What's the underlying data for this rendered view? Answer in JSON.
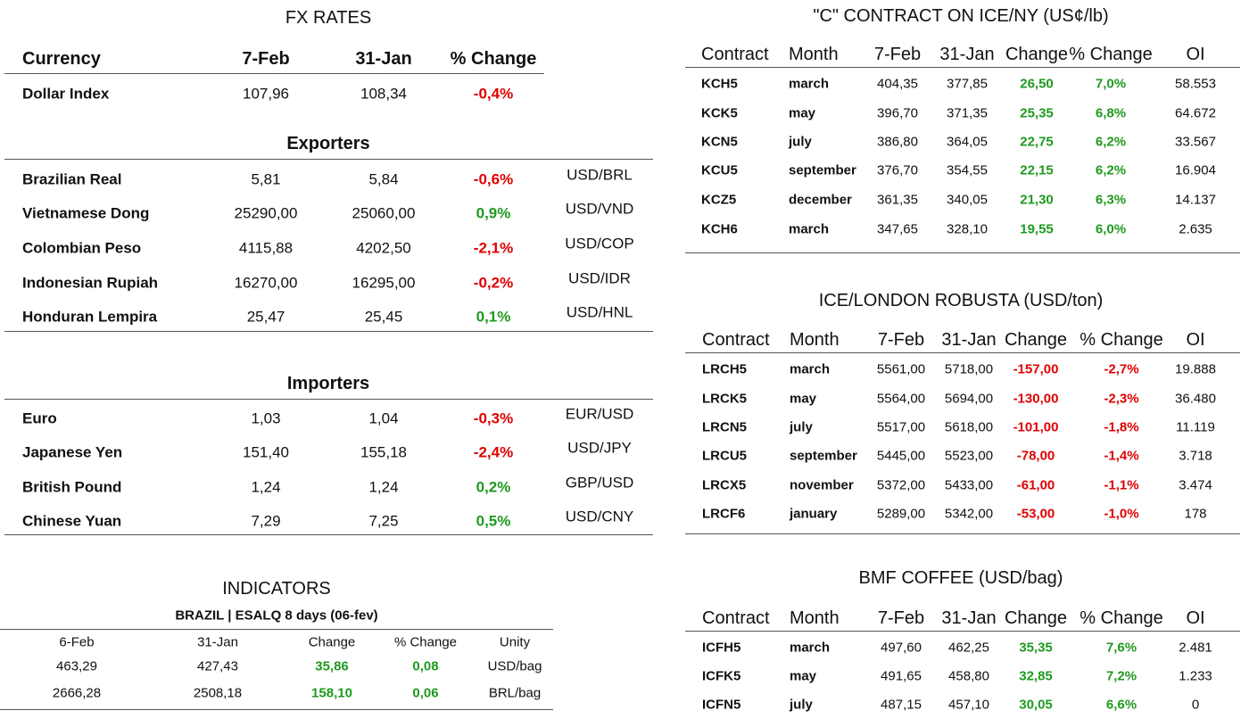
{
  "fx": {
    "title": "FX RATES",
    "headers": [
      "Currency",
      "7-Feb",
      "31-Jan",
      "% Change"
    ],
    "dollar": [
      "Dollar Index",
      "107,96",
      "108,34",
      "-0,4%"
    ],
    "exporters": {
      "title": "Exporters",
      "rows": [
        [
          "Brazilian Real",
          "5,81",
          "5,84",
          "-0,6%",
          "USD/BRL"
        ],
        [
          "Vietnamese Dong",
          "25290,00",
          "25060,00",
          "0,9%",
          "USD/VND"
        ],
        [
          "Colombian Peso",
          "4115,88",
          "4202,50",
          "-2,1%",
          "USD/COP"
        ],
        [
          "Indonesian Rupiah",
          "16270,00",
          "16295,00",
          "-0,2%",
          "USD/IDR"
        ],
        [
          "Honduran Lempira",
          "25,47",
          "25,45",
          "0,1%",
          "USD/HNL"
        ]
      ]
    },
    "importers": {
      "title": "Importers",
      "rows": [
        [
          "Euro",
          "1,03",
          "1,04",
          "-0,3%",
          "EUR/USD"
        ],
        [
          "Japanese Yen",
          "151,40",
          "155,18",
          "-2,4%",
          "USD/JPY"
        ],
        [
          "British Pound",
          "1,24",
          "1,24",
          "0,2%",
          "GBP/USD"
        ],
        [
          "Chinese Yuan",
          "7,29",
          "7,25",
          "0,5%",
          "USD/CNY"
        ]
      ]
    }
  },
  "indicators": {
    "title": "INDICATORS",
    "subtitle": "BRAZIL | ESALQ 8 days (06-fev)",
    "headers": [
      "6-Feb",
      "31-Jan",
      "Change",
      "% Change",
      "Unity"
    ],
    "rows": [
      [
        "463,29",
        "427,43",
        "35,86",
        "0,08",
        "USD/bag"
      ],
      [
        "2666,28",
        "2508,18",
        "158,10",
        "0,06",
        "BRL/bag"
      ]
    ]
  },
  "kc": {
    "title": "\"C\" CONTRACT ON ICE/NY (US¢/lb)",
    "headers": [
      "Contract",
      "Month",
      "7-Feb",
      "31-Jan",
      "Change",
      "% Change",
      "OI"
    ],
    "rows": [
      [
        "KCH5",
        "march",
        "404,35",
        "377,85",
        "26,50",
        "7,0%",
        "58.553"
      ],
      [
        "KCK5",
        "may",
        "396,70",
        "371,35",
        "25,35",
        "6,8%",
        "64.672"
      ],
      [
        "KCN5",
        "july",
        "386,80",
        "364,05",
        "22,75",
        "6,2%",
        "33.567"
      ],
      [
        "KCU5",
        "september",
        "376,70",
        "354,55",
        "22,15",
        "6,2%",
        "16.904"
      ],
      [
        "KCZ5",
        "december",
        "361,35",
        "340,05",
        "21,30",
        "6,3%",
        "14.137"
      ],
      [
        "KCH6",
        "march",
        "347,65",
        "328,10",
        "19,55",
        "6,0%",
        "2.635"
      ]
    ]
  },
  "robusta": {
    "title": "ICE/LONDON ROBUSTA (USD/ton)",
    "headers": [
      "Contract",
      "Month",
      "7-Feb",
      "31-Jan",
      "Change",
      "% Change",
      "OI"
    ],
    "rows": [
      [
        "LRCH5",
        "march",
        "5561,00",
        "5718,00",
        "-157,00",
        "-2,7%",
        "19.888"
      ],
      [
        "LRCK5",
        "may",
        "5564,00",
        "5694,00",
        "-130,00",
        "-2,3%",
        "36.480"
      ],
      [
        "LRCN5",
        "july",
        "5517,00",
        "5618,00",
        "-101,00",
        "-1,8%",
        "11.119"
      ],
      [
        "LRCU5",
        "september",
        "5445,00",
        "5523,00",
        "-78,00",
        "-1,4%",
        "3.718"
      ],
      [
        "LRCX5",
        "november",
        "5372,00",
        "5433,00",
        "-61,00",
        "-1,1%",
        "3.474"
      ],
      [
        "LRCF6",
        "january",
        "5289,00",
        "5342,00",
        "-53,00",
        "-1,0%",
        "178"
      ]
    ]
  },
  "bmf": {
    "title": "BMF COFFEE (USD/bag)",
    "headers": [
      "Contract",
      "Month",
      "7-Feb",
      "31-Jan",
      "Change",
      "% Change",
      "OI"
    ],
    "rows": [
      [
        "ICFH5",
        "march",
        "497,60",
        "462,25",
        "35,35",
        "7,6%",
        "2.481"
      ],
      [
        "ICFK5",
        "may",
        "491,65",
        "458,80",
        "32,85",
        "7,2%",
        "1.233"
      ],
      [
        "ICFN5",
        "july",
        "487,15",
        "457,10",
        "30,05",
        "6,6%",
        "0"
      ]
    ]
  }
}
